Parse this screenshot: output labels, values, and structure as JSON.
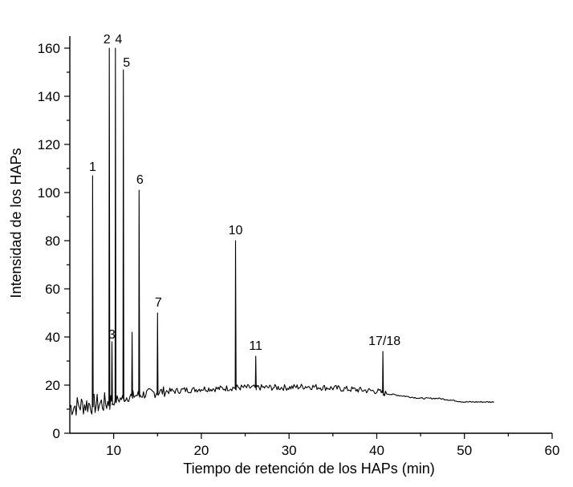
{
  "chart_data": {
    "type": "line",
    "title": "",
    "xlabel": "Tiempo de retención de los HAPs (min)",
    "ylabel": "Intensidad de los HAPs",
    "xlim": [
      5,
      60
    ],
    "ylim": [
      0,
      165
    ],
    "x_ticks": [
      10,
      20,
      30,
      40,
      50,
      60
    ],
    "y_ticks": [
      0,
      20,
      40,
      60,
      80,
      100,
      120,
      140,
      160
    ],
    "x_tick_labels": [
      "10",
      "20",
      "30",
      "40",
      "50",
      "60"
    ],
    "y_tick_labels": [
      "0",
      "20",
      "40",
      "60",
      "80",
      "100",
      "120",
      "140",
      "160"
    ],
    "grid": false,
    "legend": "none",
    "baseline": {
      "x": [
        5.0,
        6.0,
        7.0,
        8.0,
        9.0,
        10.0,
        11.0,
        12.0,
        13.0,
        14.0,
        15.0,
        16.0,
        17.0,
        18.0,
        19.0,
        20.0,
        22.0,
        24.0,
        26.0,
        28.0,
        30.0,
        32.0,
        34.0,
        36.0,
        38.0,
        40.0,
        41.0,
        42.0,
        43.0,
        44.0,
        45.0,
        46.0,
        47.0,
        48.0,
        49.0,
        50.0,
        51.0,
        52.0,
        53.4
      ],
      "y": [
        11.0,
        11.5,
        12.0,
        12.0,
        12.5,
        13.5,
        14.5,
        15.5,
        16.0,
        16.5,
        17.0,
        17.5,
        17.5,
        18.0,
        18.0,
        18.5,
        18.5,
        19.0,
        19.0,
        19.0,
        19.0,
        19.5,
        19.0,
        18.5,
        18.0,
        17.5,
        16.5,
        16.0,
        15.5,
        15.0,
        14.5,
        14.5,
        14.5,
        14.0,
        13.5,
        13.0,
        13.0,
        13.0,
        13.0
      ]
    },
    "peaks": [
      {
        "label": "1",
        "x": 7.6,
        "y": 107
      },
      {
        "label": "2",
        "x": 9.5,
        "y": 160
      },
      {
        "label": "3",
        "x": 9.8,
        "y": 38
      },
      {
        "label": "4",
        "x": 10.2,
        "y": 160
      },
      {
        "label": "5",
        "x": 11.1,
        "y": 151
      },
      {
        "label": "",
        "x": 12.1,
        "y": 42
      },
      {
        "label": "6",
        "x": 12.9,
        "y": 101
      },
      {
        "label": "7",
        "x": 15.0,
        "y": 50
      },
      {
        "label": "10",
        "x": 23.9,
        "y": 80
      },
      {
        "label": "11",
        "x": 26.2,
        "y": 32
      },
      {
        "label": "17/18",
        "x": 40.7,
        "y": 34
      }
    ]
  }
}
